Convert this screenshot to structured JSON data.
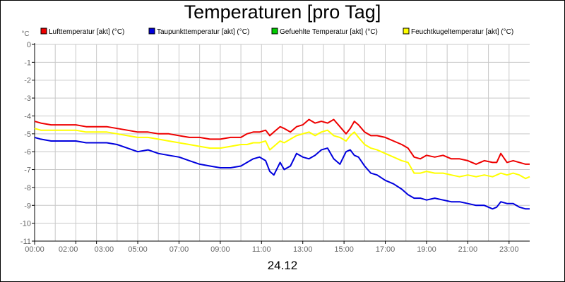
{
  "chart_data": {
    "type": "line",
    "title": "Temperaturen [pro Tag]",
    "xlabel": "24.12",
    "ylabel": "°C",
    "ylim": [
      -11,
      0
    ],
    "yticks": [
      0,
      -1,
      -2,
      -3,
      -4,
      -5,
      -6,
      -7,
      -8,
      -9,
      -10,
      -11
    ],
    "ytick_labels": [
      "0",
      "-1",
      "-2",
      "-3",
      "-4",
      "-5",
      "-6",
      "-7",
      "-8",
      "-9",
      "-10",
      "-11"
    ],
    "xlim": [
      0,
      24
    ],
    "xticks": [
      0,
      2,
      3,
      5,
      7,
      9,
      11,
      13,
      15,
      17,
      19,
      21,
      23
    ],
    "xtick_labels": [
      "00:00",
      "02:00",
      "03:00",
      "05:00",
      "07:00",
      "09:00",
      "11:00",
      "13:00",
      "15:00",
      "17:00",
      "19:00",
      "21:00",
      "23:00"
    ],
    "grid": true,
    "legend_position": "top",
    "series": [
      {
        "name": "Lufttemperatur [akt] (°C)",
        "color": "#ee0000",
        "x": [
          0,
          0.3,
          0.8,
          1.2,
          1.5,
          2,
          2.5,
          3,
          3.5,
          4,
          4.5,
          5,
          5.5,
          6,
          6.5,
          7,
          7.5,
          8,
          8.5,
          9,
          9.5,
          10,
          10.3,
          10.6,
          10.9,
          11.2,
          11.4,
          11.6,
          11.9,
          12.1,
          12.4,
          12.7,
          13,
          13.3,
          13.6,
          13.9,
          14.2,
          14.5,
          14.8,
          15.1,
          15.3,
          15.5,
          15.7,
          16,
          16.3,
          16.6,
          17,
          17.4,
          17.8,
          18.1,
          18.4,
          18.7,
          19,
          19.4,
          19.8,
          20.2,
          20.6,
          21,
          21.4,
          21.8,
          22.2,
          22.4,
          22.6,
          22.9,
          23.2,
          23.5,
          23.8,
          24
        ],
        "values": [
          -4.3,
          -4.4,
          -4.5,
          -4.5,
          -4.5,
          -4.5,
          -4.6,
          -4.6,
          -4.6,
          -4.7,
          -4.8,
          -4.9,
          -4.9,
          -5.0,
          -5.0,
          -5.1,
          -5.2,
          -5.2,
          -5.3,
          -5.3,
          -5.2,
          -5.2,
          -5.0,
          -4.9,
          -4.9,
          -4.8,
          -5.1,
          -4.9,
          -4.6,
          -4.7,
          -4.9,
          -4.6,
          -4.5,
          -4.2,
          -4.4,
          -4.3,
          -4.4,
          -4.2,
          -4.6,
          -5.0,
          -4.7,
          -4.3,
          -4.5,
          -4.9,
          -5.1,
          -5.1,
          -5.2,
          -5.4,
          -5.6,
          -5.8,
          -6.3,
          -6.4,
          -6.2,
          -6.3,
          -6.2,
          -6.4,
          -6.4,
          -6.5,
          -6.7,
          -6.5,
          -6.6,
          -6.6,
          -6.1,
          -6.6,
          -6.5,
          -6.6,
          -6.7,
          -6.7
        ]
      },
      {
        "name": "Taupunkttemperatur [akt] (°C)",
        "color": "#0000dd",
        "x": [
          0,
          0.3,
          0.8,
          1.2,
          1.5,
          2,
          2.5,
          3,
          3.5,
          4,
          4.5,
          5,
          5.5,
          6,
          6.5,
          7,
          7.5,
          8,
          8.5,
          9,
          9.5,
          10,
          10.3,
          10.6,
          10.9,
          11.2,
          11.4,
          11.6,
          11.9,
          12.1,
          12.4,
          12.7,
          13,
          13.3,
          13.6,
          13.9,
          14.2,
          14.5,
          14.8,
          15.1,
          15.3,
          15.5,
          15.7,
          16,
          16.3,
          16.6,
          17,
          17.4,
          17.8,
          18.1,
          18.4,
          18.7,
          19,
          19.4,
          19.8,
          20.2,
          20.6,
          21,
          21.4,
          21.8,
          22.2,
          22.4,
          22.6,
          22.9,
          23.2,
          23.5,
          23.8,
          24
        ],
        "values": [
          -5.2,
          -5.3,
          -5.4,
          -5.4,
          -5.4,
          -5.4,
          -5.5,
          -5.5,
          -5.5,
          -5.6,
          -5.8,
          -6.0,
          -5.9,
          -6.1,
          -6.2,
          -6.3,
          -6.5,
          -6.7,
          -6.8,
          -6.9,
          -6.9,
          -6.8,
          -6.6,
          -6.4,
          -6.3,
          -6.5,
          -7.1,
          -7.3,
          -6.6,
          -7.0,
          -6.8,
          -6.1,
          -6.3,
          -6.4,
          -6.2,
          -5.9,
          -5.8,
          -6.4,
          -6.7,
          -6.0,
          -5.9,
          -6.2,
          -6.3,
          -6.8,
          -7.2,
          -7.3,
          -7.6,
          -7.8,
          -8.1,
          -8.4,
          -8.6,
          -8.6,
          -8.7,
          -8.6,
          -8.7,
          -8.8,
          -8.8,
          -8.9,
          -9.0,
          -9.0,
          -9.2,
          -9.1,
          -8.8,
          -8.9,
          -8.9,
          -9.1,
          -9.2,
          -9.2
        ]
      },
      {
        "name": "Gefuehlte Temperatur [akt] (°C)",
        "color": "#00cc00",
        "x": [],
        "values": []
      },
      {
        "name": "Feuchtkugeltemperatur [akt] (°C)",
        "color": "#ffff00",
        "x": [
          0,
          0.3,
          0.8,
          1.2,
          1.5,
          2,
          2.5,
          3,
          3.5,
          4,
          4.5,
          5,
          5.5,
          6,
          6.5,
          7,
          7.5,
          8,
          8.5,
          9,
          9.5,
          10,
          10.3,
          10.6,
          10.9,
          11.2,
          11.4,
          11.6,
          11.9,
          12.1,
          12.4,
          12.7,
          13,
          13.3,
          13.6,
          13.9,
          14.2,
          14.5,
          14.8,
          15.1,
          15.3,
          15.5,
          15.7,
          16,
          16.3,
          16.6,
          17,
          17.4,
          17.8,
          18.1,
          18.4,
          18.7,
          19,
          19.4,
          19.8,
          20.2,
          20.6,
          21,
          21.4,
          21.8,
          22.2,
          22.4,
          22.6,
          22.9,
          23.2,
          23.5,
          23.8,
          24
        ],
        "values": [
          -4.7,
          -4.8,
          -4.8,
          -4.8,
          -4.8,
          -4.8,
          -4.9,
          -4.9,
          -4.9,
          -5.0,
          -5.1,
          -5.2,
          -5.2,
          -5.3,
          -5.4,
          -5.5,
          -5.6,
          -5.7,
          -5.8,
          -5.8,
          -5.7,
          -5.6,
          -5.6,
          -5.5,
          -5.5,
          -5.4,
          -5.9,
          -5.7,
          -5.4,
          -5.5,
          -5.3,
          -5.1,
          -5.0,
          -4.9,
          -5.1,
          -4.9,
          -4.8,
          -5.1,
          -5.2,
          -5.4,
          -5.1,
          -4.9,
          -5.2,
          -5.6,
          -5.8,
          -5.9,
          -6.1,
          -6.3,
          -6.5,
          -6.6,
          -7.2,
          -7.2,
          -7.1,
          -7.2,
          -7.2,
          -7.3,
          -7.4,
          -7.3,
          -7.4,
          -7.3,
          -7.4,
          -7.3,
          -7.2,
          -7.3,
          -7.2,
          -7.3,
          -7.5,
          -7.4
        ]
      }
    ]
  }
}
